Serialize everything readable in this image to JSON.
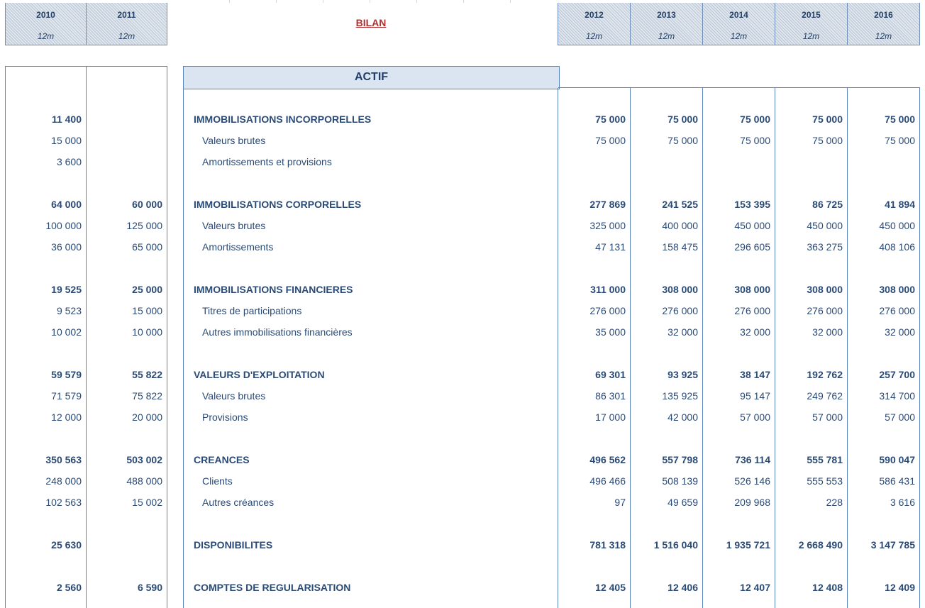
{
  "header": {
    "title": "BILAN",
    "left_years": [
      {
        "year": "2010",
        "period": "12m"
      },
      {
        "year": "2011",
        "period": "12m"
      }
    ],
    "right_years": [
      {
        "year": "2012",
        "period": "12m"
      },
      {
        "year": "2013",
        "period": "12m"
      },
      {
        "year": "2014",
        "period": "12m"
      },
      {
        "year": "2015",
        "period": "12m"
      },
      {
        "year": "2016",
        "period": "12m"
      }
    ]
  },
  "section": {
    "title": "ACTIF"
  },
  "rows": [
    {
      "label": "IMMOBILISATIONS INCORPORELLES",
      "bold": true,
      "left": [
        "11 400",
        ""
      ],
      "right": [
        "75 000",
        "75 000",
        "75 000",
        "75 000",
        "75 000"
      ]
    },
    {
      "label": "Valeurs brutes",
      "bold": false,
      "left": [
        "15 000",
        ""
      ],
      "right": [
        "75 000",
        "75 000",
        "75 000",
        "75 000",
        "75 000"
      ]
    },
    {
      "label": "Amortissements et provisions",
      "bold": false,
      "left": [
        "3 600",
        ""
      ],
      "right": [
        "",
        "",
        "",
        "",
        ""
      ]
    },
    {
      "label": "IMMOBILISATIONS CORPORELLES",
      "bold": true,
      "left": [
        "64 000",
        "60 000"
      ],
      "right": [
        "277 869",
        "241 525",
        "153 395",
        "86 725",
        "41 894"
      ]
    },
    {
      "label": "Valeurs brutes",
      "bold": false,
      "left": [
        "100 000",
        "125 000"
      ],
      "right": [
        "325 000",
        "400 000",
        "450 000",
        "450 000",
        "450 000"
      ]
    },
    {
      "label": "Amortissements",
      "bold": false,
      "left": [
        "36 000",
        "65 000"
      ],
      "right": [
        "47 131",
        "158 475",
        "296 605",
        "363 275",
        "408 106"
      ]
    },
    {
      "label": "IMMOBILISATIONS FINANCIERES",
      "bold": true,
      "left": [
        "19 525",
        "25 000"
      ],
      "right": [
        "311 000",
        "308 000",
        "308 000",
        "308 000",
        "308 000"
      ]
    },
    {
      "label": "Titres de participations",
      "bold": false,
      "left": [
        "9 523",
        "15 000"
      ],
      "right": [
        "276 000",
        "276 000",
        "276 000",
        "276 000",
        "276 000"
      ]
    },
    {
      "label": "Autres immobilisations financières",
      "bold": false,
      "left": [
        "10 002",
        "10 000"
      ],
      "right": [
        "35 000",
        "32 000",
        "32 000",
        "32 000",
        "32 000"
      ]
    },
    {
      "label": "VALEURS D'EXPLOITATION",
      "bold": true,
      "left": [
        "59 579",
        "55 822"
      ],
      "right": [
        "69 301",
        "93 925",
        "38 147",
        "192 762",
        "257 700"
      ]
    },
    {
      "label": "Valeurs brutes",
      "bold": false,
      "left": [
        "71 579",
        "75 822"
      ],
      "right": [
        "86 301",
        "135 925",
        "95 147",
        "249 762",
        "314 700"
      ]
    },
    {
      "label": "Provisions",
      "bold": false,
      "left": [
        "12 000",
        "20 000"
      ],
      "right": [
        "17 000",
        "42 000",
        "57 000",
        "57 000",
        "57 000"
      ]
    },
    {
      "label": "CREANCES",
      "bold": true,
      "left": [
        "350 563",
        "503 002"
      ],
      "right": [
        "496 562",
        "557 798",
        "736 114",
        "555 781",
        "590 047"
      ]
    },
    {
      "label": "Clients",
      "bold": false,
      "left": [
        "248 000",
        "488 000"
      ],
      "right": [
        "496 466",
        "508 139",
        "526 146",
        "555 553",
        "586 431"
      ]
    },
    {
      "label": "Autres créances",
      "bold": false,
      "left": [
        "102 563",
        "15 002"
      ],
      "right": [
        "97",
        "49 659",
        "209 968",
        "228",
        "3 616"
      ]
    },
    {
      "label": "DISPONIBILITES",
      "bold": true,
      "left": [
        "25 630",
        ""
      ],
      "right": [
        "781 318",
        "1 516 040",
        "1 935 721",
        "2 668 490",
        "3 147 785"
      ]
    },
    {
      "label": "COMPTES DE REGULARISATION",
      "bold": true,
      "left": [
        "2 560",
        "6 590"
      ],
      "right": [
        "12 405",
        "12 406",
        "12 407",
        "12 408",
        "12 409"
      ]
    }
  ]
}
